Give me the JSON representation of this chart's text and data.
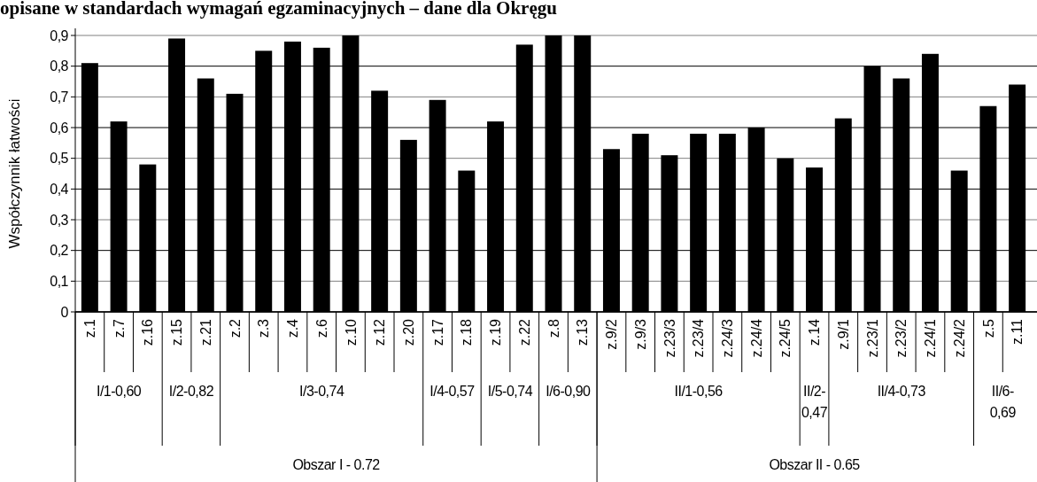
{
  "chart_data": {
    "type": "bar",
    "title": "opisane w standardach wymagań egzaminacyjnych – dane dla Okręgu",
    "ylabel": "Współczynnik łatwości",
    "categories": [
      "z.1",
      "z.7",
      "z.16",
      "z.15",
      "z.21",
      "z.2",
      "z.3",
      "z.4",
      "z.6",
      "z.10",
      "z.12",
      "z.20",
      "z.17",
      "z.18",
      "z.19",
      "z.22",
      "z.8",
      "z.13",
      "z.9/2",
      "z.9/3",
      "z.23/3",
      "z.23/4",
      "z.24/3",
      "z.24/4",
      "z.24/5",
      "z.14",
      "z.9/1",
      "z.23/1",
      "z.23/2",
      "z.24/1",
      "z.24/2",
      "z.5",
      "z.11"
    ],
    "values": [
      0.81,
      0.62,
      0.48,
      0.89,
      0.76,
      0.71,
      0.85,
      0.88,
      0.86,
      0.9,
      0.72,
      0.56,
      0.69,
      0.46,
      0.62,
      0.87,
      0.9,
      0.9,
      0.53,
      0.58,
      0.51,
      0.58,
      0.58,
      0.6,
      0.5,
      0.47,
      0.63,
      0.8,
      0.76,
      0.84,
      0.46,
      0.67,
      0.74
    ],
    "color": "#000000",
    "ylim": [
      0,
      0.9
    ],
    "yticks": [
      0,
      {
        "value": 0.1,
        "label": "0,1"
      },
      {
        "value": 0.2,
        "label": "0,2"
      },
      {
        "value": 0.3,
        "label": "0,3"
      },
      {
        "value": 0.4,
        "label": "0,4"
      },
      {
        "value": 0.5,
        "label": "0,5"
      },
      {
        "value": 0.6,
        "label": "0,6"
      },
      {
        "value": 0.7,
        "label": "0,7"
      },
      {
        "value": 0.8,
        "label": "0,8"
      },
      {
        "value": 0.9,
        "label": "0,9"
      }
    ],
    "grid": "y",
    "annotations": [
      "I/1-0,60",
      "I/2-0,82",
      "I/3-0,74",
      "I/4-0,57",
      "I/5-0,74",
      "I/6-0,90",
      "II/1-0,56",
      "II/2-0,47",
      "II/4-0,73",
      "II/6-0,69",
      "Obszar I - 0.72",
      "Obszar II - 0.65"
    ]
  }
}
